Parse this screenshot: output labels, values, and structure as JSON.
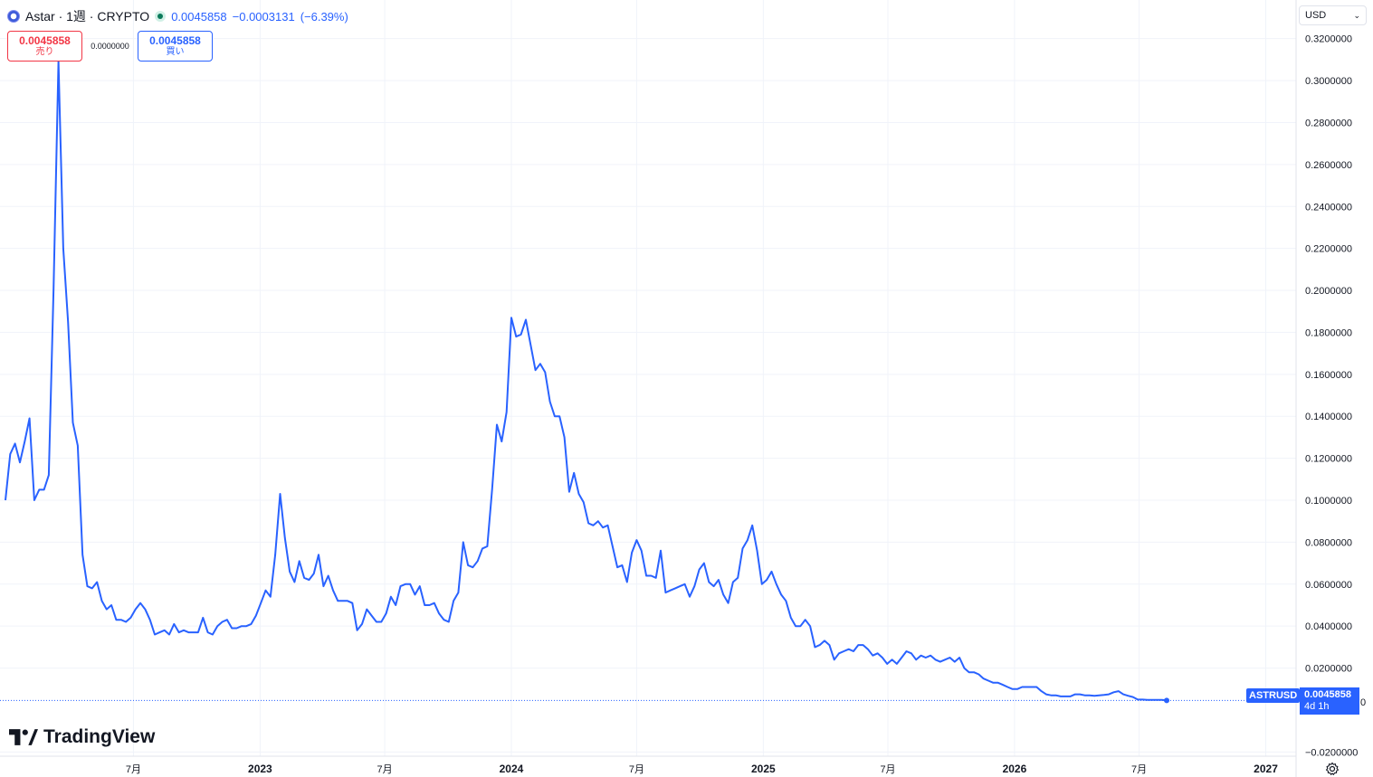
{
  "header": {
    "title": "Astar · 1週 · CRYPTO",
    "last_price": "0.0045858",
    "change": "−0.0003131",
    "change_pct": "(−6.39%)",
    "colors": {
      "accent": "#2962ff",
      "sell": "#f23645",
      "line": "#2962ff"
    }
  },
  "trade": {
    "sell_price": "0.0045858",
    "sell_label": "売り",
    "spread": "0.0000000",
    "buy_price": "0.0045858",
    "buy_label": "買い"
  },
  "currency": {
    "selected": "USD"
  },
  "price_label": {
    "ticker": "ASTRUSD",
    "price": "0.0045858",
    "countdown": "4d 1h",
    "zero_marker": "0"
  },
  "brand": {
    "name": "TradingView"
  },
  "chart_data": {
    "type": "line",
    "series": [
      {
        "name": "ASTRUSD",
        "x": [
          "2021-12-27",
          "2022-01-03",
          "2022-01-10",
          "2022-01-17",
          "2022-01-24",
          "2022-01-31",
          "2022-02-07",
          "2022-02-14",
          "2022-02-21",
          "2022-02-28",
          "2022-03-07",
          "2022-03-14",
          "2022-03-21",
          "2022-03-28",
          "2022-04-04",
          "2022-04-11",
          "2022-04-18",
          "2022-04-25",
          "2022-05-02",
          "2022-05-09",
          "2022-05-16",
          "2022-05-23",
          "2022-05-30",
          "2022-06-06",
          "2022-06-13",
          "2022-06-20",
          "2022-06-27",
          "2022-07-04",
          "2022-07-11",
          "2022-07-18",
          "2022-07-25",
          "2022-08-01",
          "2022-08-08",
          "2022-08-15",
          "2022-08-22",
          "2022-08-29",
          "2022-09-05",
          "2022-09-12",
          "2022-09-19",
          "2022-09-26",
          "2022-10-03",
          "2022-10-10",
          "2022-10-17",
          "2022-10-24",
          "2022-10-31",
          "2022-11-07",
          "2022-11-14",
          "2022-11-21",
          "2022-11-28",
          "2022-12-05",
          "2022-12-12",
          "2022-12-19",
          "2022-12-26",
          "2023-01-02",
          "2023-01-09",
          "2023-01-16",
          "2023-01-23",
          "2023-01-30",
          "2023-02-06",
          "2023-02-13",
          "2023-02-20",
          "2023-02-27",
          "2023-03-06",
          "2023-03-13",
          "2023-03-20",
          "2023-03-27",
          "2023-04-03",
          "2023-04-10",
          "2023-04-17",
          "2023-04-24",
          "2023-05-01",
          "2023-05-08",
          "2023-05-15",
          "2023-05-22",
          "2023-05-29",
          "2023-06-05",
          "2023-06-12",
          "2023-06-19",
          "2023-06-26",
          "2023-07-03",
          "2023-07-10",
          "2023-07-17",
          "2023-07-24",
          "2023-07-31",
          "2023-08-07",
          "2023-08-14",
          "2023-08-21",
          "2023-08-28",
          "2023-09-04",
          "2023-09-11",
          "2023-09-18",
          "2023-09-25",
          "2023-10-02",
          "2023-10-09",
          "2023-10-16",
          "2023-10-23",
          "2023-10-30",
          "2023-11-06",
          "2023-11-13",
          "2023-11-20",
          "2023-11-27",
          "2023-12-04",
          "2023-12-11",
          "2023-12-18",
          "2023-12-25",
          "2024-01-01",
          "2024-01-08",
          "2024-01-15",
          "2024-01-22",
          "2024-01-29",
          "2024-02-05",
          "2024-02-12",
          "2024-02-19",
          "2024-02-26",
          "2024-03-04",
          "2024-03-11",
          "2024-03-18",
          "2024-03-25",
          "2024-04-01",
          "2024-04-08",
          "2024-04-15",
          "2024-04-22",
          "2024-04-29",
          "2024-05-06",
          "2024-05-13",
          "2024-05-20",
          "2024-05-27",
          "2024-06-03",
          "2024-06-10",
          "2024-06-17",
          "2024-06-24",
          "2024-07-01",
          "2024-07-08",
          "2024-07-15",
          "2024-07-22",
          "2024-07-29",
          "2024-08-05",
          "2024-08-12",
          "2024-08-19",
          "2024-08-26",
          "2024-09-02",
          "2024-09-09",
          "2024-09-16",
          "2024-09-23",
          "2024-09-30",
          "2024-10-07",
          "2024-10-14",
          "2024-10-21",
          "2024-10-28",
          "2024-11-04",
          "2024-11-11",
          "2024-11-18",
          "2024-11-25",
          "2024-12-02",
          "2024-12-09",
          "2024-12-16",
          "2024-12-23",
          "2024-12-30",
          "2025-01-06",
          "2025-01-13",
          "2025-01-20",
          "2025-01-27",
          "2025-02-03",
          "2025-02-10",
          "2025-02-17",
          "2025-02-24",
          "2025-03-03",
          "2025-03-10",
          "2025-03-17",
          "2025-03-24",
          "2025-03-31",
          "2025-04-07",
          "2025-04-14",
          "2025-04-21",
          "2025-04-28",
          "2025-05-05",
          "2025-05-12",
          "2025-05-19",
          "2025-05-26",
          "2025-06-02",
          "2025-06-09",
          "2025-06-16",
          "2025-06-23",
          "2025-06-30",
          "2025-07-07",
          "2025-07-14",
          "2025-07-21",
          "2025-07-28",
          "2025-08-04",
          "2025-08-11",
          "2025-08-18",
          "2025-08-25",
          "2025-09-01",
          "2025-09-08",
          "2025-09-15",
          "2025-09-22",
          "2025-09-29",
          "2025-10-06",
          "2025-10-13",
          "2025-10-20",
          "2025-10-27",
          "2025-11-03",
          "2025-11-10",
          "2025-11-17",
          "2025-11-24",
          "2025-12-01",
          "2025-12-08",
          "2025-12-15",
          "2025-12-22",
          "2025-12-29",
          "2026-01-05",
          "2026-01-12",
          "2026-01-19",
          "2026-01-26",
          "2026-02-02",
          "2026-02-09",
          "2026-02-16",
          "2026-02-23",
          "2026-03-02",
          "2026-03-09",
          "2026-03-16",
          "2026-03-23",
          "2026-03-30",
          "2026-04-06",
          "2026-04-13",
          "2026-04-20",
          "2026-04-27",
          "2026-05-04",
          "2026-05-11",
          "2026-05-18",
          "2026-05-25",
          "2026-06-01",
          "2026-06-08",
          "2026-06-15",
          "2026-06-22",
          "2026-06-29",
          "2026-07-06",
          "2026-07-13",
          "2026-07-20",
          "2026-07-27",
          "2026-08-03",
          "2026-08-10"
        ],
        "values": [
          0.1,
          0.122,
          0.127,
          0.118,
          0.128,
          0.139,
          0.1,
          0.105,
          0.105,
          0.112,
          0.201,
          0.309,
          0.22,
          0.185,
          0.137,
          0.126,
          0.074,
          0.059,
          0.058,
          0.061,
          0.052,
          0.048,
          0.05,
          0.043,
          0.043,
          0.042,
          0.044,
          0.048,
          0.051,
          0.048,
          0.043,
          0.036,
          0.037,
          0.038,
          0.036,
          0.041,
          0.037,
          0.038,
          0.037,
          0.037,
          0.037,
          0.044,
          0.037,
          0.036,
          0.04,
          0.042,
          0.043,
          0.039,
          0.039,
          0.04,
          0.04,
          0.041,
          0.045,
          0.051,
          0.057,
          0.054,
          0.074,
          0.103,
          0.082,
          0.066,
          0.061,
          0.071,
          0.063,
          0.062,
          0.065,
          0.074,
          0.059,
          0.064,
          0.057,
          0.052,
          0.052,
          0.052,
          0.051,
          0.038,
          0.041,
          0.048,
          0.045,
          0.042,
          0.042,
          0.046,
          0.054,
          0.05,
          0.059,
          0.06,
          0.06,
          0.055,
          0.059,
          0.05,
          0.05,
          0.051,
          0.046,
          0.043,
          0.042,
          0.052,
          0.056,
          0.08,
          0.069,
          0.068,
          0.071,
          0.077,
          0.078,
          0.105,
          0.136,
          0.128,
          0.142,
          0.187,
          0.178,
          0.179,
          0.186,
          0.174,
          0.162,
          0.165,
          0.161,
          0.147,
          0.14,
          0.14,
          0.13,
          0.104,
          0.113,
          0.103,
          0.099,
          0.089,
          0.088,
          0.09,
          0.087,
          0.088,
          0.078,
          0.068,
          0.069,
          0.061,
          0.075,
          0.081,
          0.076,
          0.064,
          0.064,
          0.063,
          0.076,
          0.056,
          0.057,
          0.058,
          0.059,
          0.06,
          0.054,
          0.059,
          0.067,
          0.07,
          0.061,
          0.059,
          0.062,
          0.055,
          0.051,
          0.061,
          0.063,
          0.077,
          0.081,
          0.088,
          0.076,
          0.06,
          0.062,
          0.066,
          0.06,
          0.055,
          0.052,
          0.044,
          0.04,
          0.04,
          0.043,
          0.04,
          0.03,
          0.031,
          0.033,
          0.031,
          0.024,
          0.027,
          0.028,
          0.029,
          0.028,
          0.031,
          0.031,
          0.029,
          0.026,
          0.027,
          0.025,
          0.022,
          0.024,
          0.022,
          0.025,
          0.028,
          0.027,
          0.024,
          0.026,
          0.025,
          0.026,
          0.024,
          0.023,
          0.024,
          0.025,
          0.023,
          0.025,
          0.02,
          0.018,
          0.018,
          0.017,
          0.015,
          0.014,
          0.013,
          0.013,
          0.012,
          0.011,
          0.01,
          0.01,
          0.011,
          0.011,
          0.011,
          0.011,
          0.009,
          0.0075,
          0.007,
          0.007,
          0.0065,
          0.0065,
          0.0065,
          0.0075,
          0.0075,
          0.007,
          0.007,
          0.0068,
          0.007,
          0.0072,
          0.0075,
          0.0085,
          0.009,
          0.0075,
          0.0068,
          0.0062,
          0.005,
          0.005,
          0.0048,
          0.0048,
          0.0048,
          0.0048,
          0.0045858
        ]
      }
    ],
    "ylim": [
      -0.022,
      0.3384
    ],
    "yticks": [
      {
        "value": -0.02,
        "label": "−0.0200000"
      },
      {
        "value": 0.02,
        "label": "0.0200000"
      },
      {
        "value": 0.04,
        "label": "0.0400000"
      },
      {
        "value": 0.06,
        "label": "0.0600000"
      },
      {
        "value": 0.08,
        "label": "0.0800000"
      },
      {
        "value": 0.1,
        "label": "0.1000000"
      },
      {
        "value": 0.12,
        "label": "0.1200000"
      },
      {
        "value": 0.14,
        "label": "0.1400000"
      },
      {
        "value": 0.16,
        "label": "0.1600000"
      },
      {
        "value": 0.18,
        "label": "0.1800000"
      },
      {
        "value": 0.2,
        "label": "0.2000000"
      },
      {
        "value": 0.22,
        "label": "0.2200000"
      },
      {
        "value": 0.24,
        "label": "0.2400000"
      },
      {
        "value": 0.26,
        "label": "0.2600000"
      },
      {
        "value": 0.28,
        "label": "0.2800000"
      },
      {
        "value": 0.3,
        "label": "0.3000000"
      },
      {
        "value": 0.32,
        "label": "0.3200000"
      }
    ],
    "xticks": [
      {
        "date": "2022-07-01",
        "label": "7月",
        "major": false
      },
      {
        "date": "2023-01-01",
        "label": "2023",
        "major": true
      },
      {
        "date": "2023-07-01",
        "label": "7月",
        "major": false
      },
      {
        "date": "2024-01-01",
        "label": "2024",
        "major": true
      },
      {
        "date": "2024-07-01",
        "label": "7月",
        "major": false
      },
      {
        "date": "2025-01-01",
        "label": "2025",
        "major": true
      },
      {
        "date": "2025-07-01",
        "label": "7月",
        "major": false
      },
      {
        "date": "2026-01-01",
        "label": "2026",
        "major": true
      },
      {
        "date": "2026-07-01",
        "label": "7月",
        "major": false
      },
      {
        "date": "2027-01-01",
        "label": "2027",
        "major": true
      }
    ],
    "xlim": [
      "2021-12-27",
      "2027-02-14"
    ],
    "grid": true,
    "last_value_line": true
  }
}
